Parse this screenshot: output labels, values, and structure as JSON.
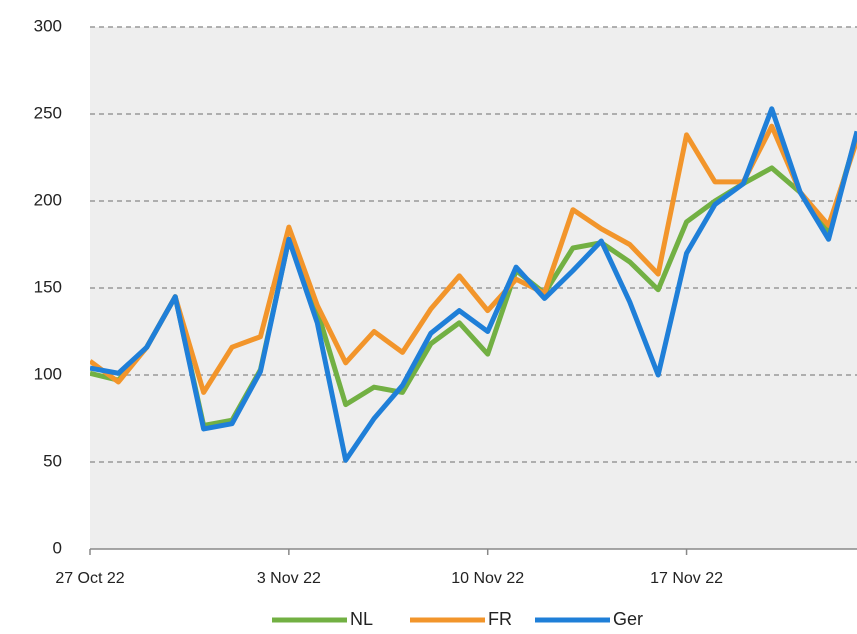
{
  "chart_data": {
    "type": "line",
    "x": [
      "2022-10-27",
      "2022-10-28",
      "2022-10-29",
      "2022-10-30",
      "2022-10-31",
      "2022-11-01",
      "2022-11-02",
      "2022-11-03",
      "2022-11-04",
      "2022-11-05",
      "2022-11-06",
      "2022-11-07",
      "2022-11-08",
      "2022-11-09",
      "2022-11-10",
      "2022-11-11",
      "2022-11-12",
      "2022-11-13",
      "2022-11-14",
      "2022-11-15",
      "2022-11-16",
      "2022-11-17",
      "2022-11-18",
      "2022-11-19",
      "2022-11-20",
      "2022-11-21",
      "2022-11-22",
      "2022-11-23"
    ],
    "series": [
      {
        "name": "NL",
        "color": "#72b043",
        "values": [
          101,
          97,
          116,
          145,
          71,
          74,
          103,
          178,
          137,
          83,
          93,
          90,
          118,
          130,
          112,
          160,
          147,
          173,
          176,
          165,
          149,
          188,
          200,
          210,
          219,
          205,
          183,
          238
        ]
      },
      {
        "name": "FR",
        "color": "#f2952b",
        "values": [
          108,
          96,
          116,
          145,
          90,
          116,
          122,
          185,
          140,
          107,
          125,
          113,
          138,
          157,
          137,
          155,
          147,
          195,
          184,
          175,
          158,
          238,
          211,
          211,
          243,
          205,
          186,
          235
        ]
      },
      {
        "name": "Ger",
        "color": "#1f7fd8",
        "values": [
          104,
          101,
          116,
          145,
          69,
          72,
          102,
          178,
          130,
          51,
          75,
          94,
          124,
          137,
          125,
          162,
          144,
          160,
          177,
          142,
          100,
          170,
          198,
          210,
          253,
          205,
          178,
          240
        ]
      }
    ],
    "xlim": [
      "2022-10-27",
      "2022-11-23"
    ],
    "xticks": [
      {
        "value": "2022-10-27",
        "label": "27 Oct 22"
      },
      {
        "value": "2022-11-03",
        "label": "3 Nov 22"
      },
      {
        "value": "2022-11-10",
        "label": "10 Nov 22"
      },
      {
        "value": "2022-11-17",
        "label": "17 Nov 22"
      }
    ],
    "ylim": [
      0,
      300
    ],
    "yticks": [
      0,
      50,
      100,
      150,
      200,
      250,
      300
    ],
    "grid": true,
    "legend": "bottom"
  }
}
